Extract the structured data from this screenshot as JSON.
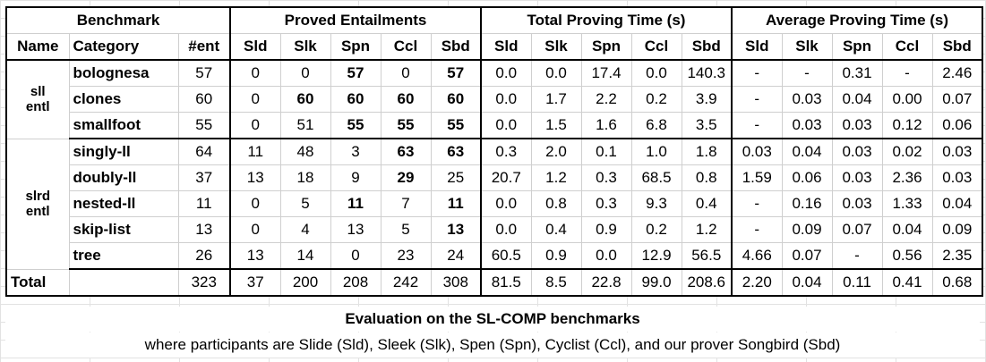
{
  "headers": {
    "benchmark": "Benchmark",
    "proved": "Proved Entailments",
    "total_time": "Total Proving Time (s)",
    "avg_time": "Average Proving Time (s)",
    "name": "Name",
    "category": "Category",
    "ent": "#ent",
    "tools": [
      "Sld",
      "Slk",
      "Spn",
      "Ccl",
      "Sbd"
    ]
  },
  "groups": [
    {
      "name_line1": "sll",
      "name_line2": "entl",
      "rows": [
        {
          "category": "bolognesa",
          "ent": "57",
          "proved": [
            "0",
            "0",
            "57",
            "0",
            "57"
          ],
          "proved_bold": [
            false,
            false,
            true,
            false,
            true
          ],
          "total": [
            "0.0",
            "0.0",
            "17.4",
            "0.0",
            "140.3"
          ],
          "avg": [
            "-",
            "-",
            "0.31",
            "-",
            "2.46"
          ]
        },
        {
          "category": "clones",
          "ent": "60",
          "proved": [
            "0",
            "60",
            "60",
            "60",
            "60"
          ],
          "proved_bold": [
            false,
            true,
            true,
            true,
            true
          ],
          "total": [
            "0.0",
            "1.7",
            "2.2",
            "0.2",
            "3.9"
          ],
          "avg": [
            "-",
            "0.03",
            "0.04",
            "0.00",
            "0.07"
          ]
        },
        {
          "category": "smallfoot",
          "ent": "55",
          "proved": [
            "0",
            "51",
            "55",
            "55",
            "55"
          ],
          "proved_bold": [
            false,
            false,
            true,
            true,
            true
          ],
          "total": [
            "0.0",
            "1.5",
            "1.6",
            "6.8",
            "3.5"
          ],
          "avg": [
            "-",
            "0.03",
            "0.03",
            "0.12",
            "0.06"
          ]
        }
      ]
    },
    {
      "name_line1": "slrd",
      "name_line2": "entl",
      "rows": [
        {
          "category": "singly-ll",
          "ent": "64",
          "proved": [
            "11",
            "48",
            "3",
            "63",
            "63"
          ],
          "proved_bold": [
            false,
            false,
            false,
            true,
            true
          ],
          "total": [
            "0.3",
            "2.0",
            "0.1",
            "1.0",
            "1.8"
          ],
          "avg": [
            "0.03",
            "0.04",
            "0.03",
            "0.02",
            "0.03"
          ]
        },
        {
          "category": "doubly-ll",
          "ent": "37",
          "proved": [
            "13",
            "18",
            "9",
            "29",
            "25"
          ],
          "proved_bold": [
            false,
            false,
            false,
            true,
            false
          ],
          "total": [
            "20.7",
            "1.2",
            "0.3",
            "68.5",
            "0.8"
          ],
          "avg": [
            "1.59",
            "0.06",
            "0.03",
            "2.36",
            "0.03"
          ]
        },
        {
          "category": "nested-ll",
          "ent": "11",
          "proved": [
            "0",
            "5",
            "11",
            "7",
            "11"
          ],
          "proved_bold": [
            false,
            false,
            true,
            false,
            true
          ],
          "total": [
            "0.0",
            "0.8",
            "0.3",
            "9.3",
            "0.4"
          ],
          "avg": [
            "-",
            "0.16",
            "0.03",
            "1.33",
            "0.04"
          ]
        },
        {
          "category": "skip-list",
          "ent": "13",
          "proved": [
            "0",
            "4",
            "13",
            "5",
            "13"
          ],
          "proved_bold": [
            false,
            false,
            false,
            false,
            true
          ],
          "total": [
            "0.0",
            "0.4",
            "0.9",
            "0.2",
            "1.2"
          ],
          "avg": [
            "-",
            "0.09",
            "0.07",
            "0.04",
            "0.09"
          ]
        },
        {
          "category": "tree",
          "ent": "26",
          "proved": [
            "13",
            "14",
            "0",
            "23",
            "24"
          ],
          "proved_bold": [
            false,
            false,
            false,
            false,
            false
          ],
          "total": [
            "60.5",
            "0.9",
            "0.0",
            "12.9",
            "56.5"
          ],
          "avg": [
            "4.66",
            "0.07",
            "-",
            "0.56",
            "2.35"
          ]
        }
      ]
    }
  ],
  "total_row": {
    "label": "Total",
    "ent": "323",
    "proved": [
      "37",
      "200",
      "208",
      "242",
      "308"
    ],
    "total": [
      "81.5",
      "8.5",
      "22.8",
      "99.0",
      "208.6"
    ],
    "avg": [
      "2.20",
      "0.04",
      "0.11",
      "0.41",
      "0.68"
    ]
  },
  "caption_title": "Evaluation on the SL-COMP benchmarks",
  "caption_note": "where participants are Slide (Sld), Sleek (Slk), Spen (Spn), Cyclist (Ccl), and our prover Songbird (Sbd)"
}
